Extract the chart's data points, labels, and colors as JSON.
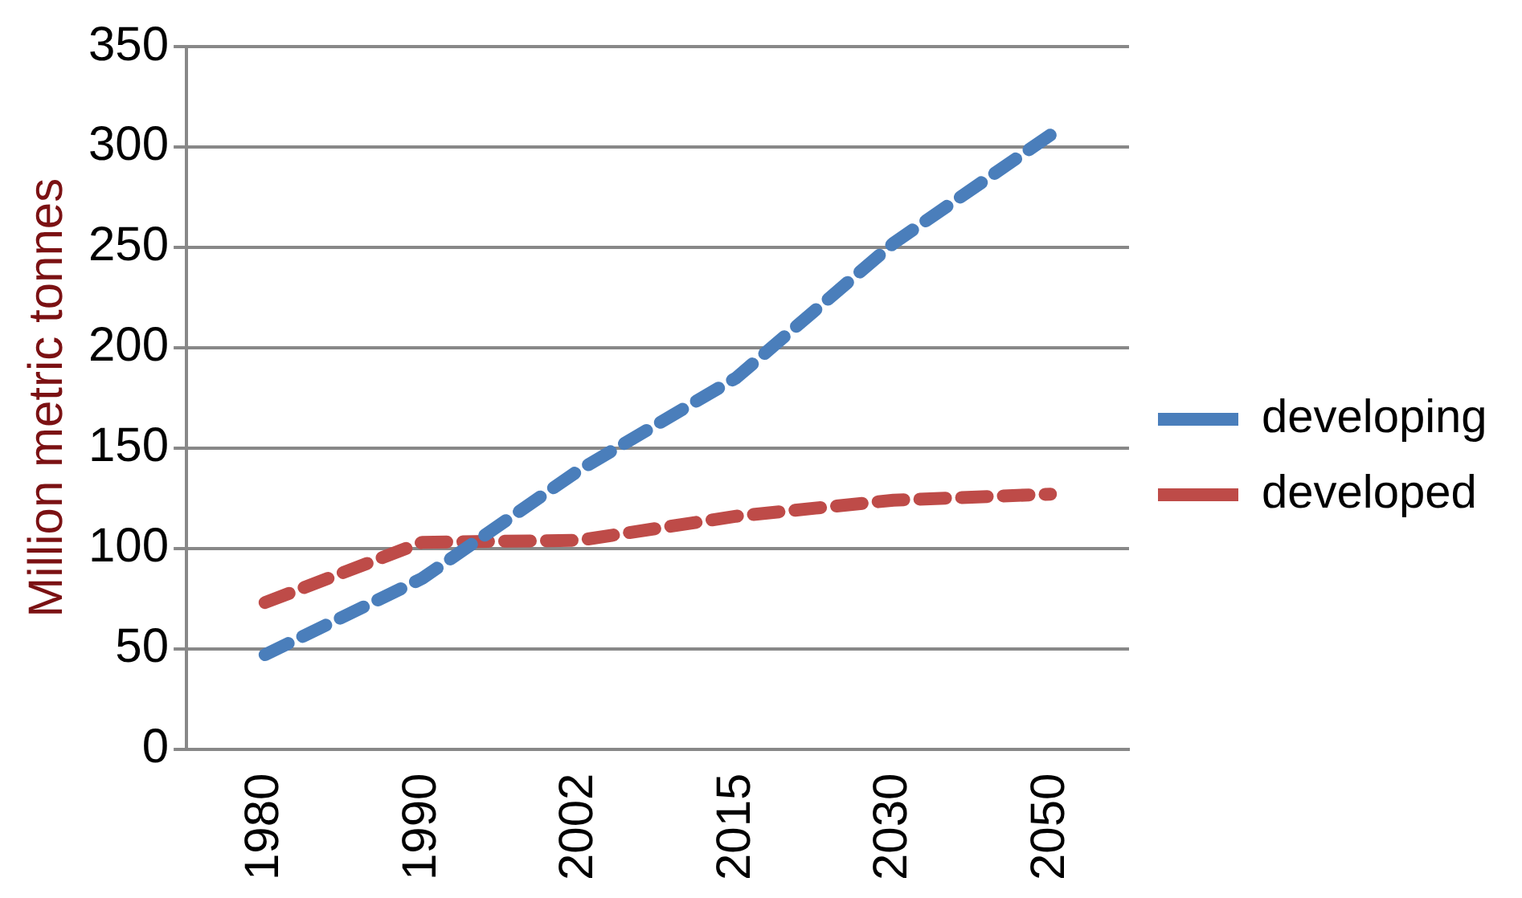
{
  "chart_data": {
    "type": "line",
    "ylabel": "Million metric tonnes",
    "categories": [
      "1980",
      "1990",
      "2002",
      "2015",
      "2030",
      "2050"
    ],
    "series": [
      {
        "name": "developing",
        "color": "#4a7ebb",
        "values": [
          47,
          85,
          139,
          185,
          252,
          306
        ]
      },
      {
        "name": "developed",
        "color": "#be4b48",
        "values": [
          73,
          103,
          104,
          116,
          124,
          127
        ]
      }
    ],
    "ylim": [
      0,
      350
    ],
    "yticks": [
      0,
      50,
      100,
      150,
      200,
      250,
      300,
      350
    ],
    "grid": "y",
    "legend": "right",
    "marker": "none",
    "line_style": "dashed"
  }
}
